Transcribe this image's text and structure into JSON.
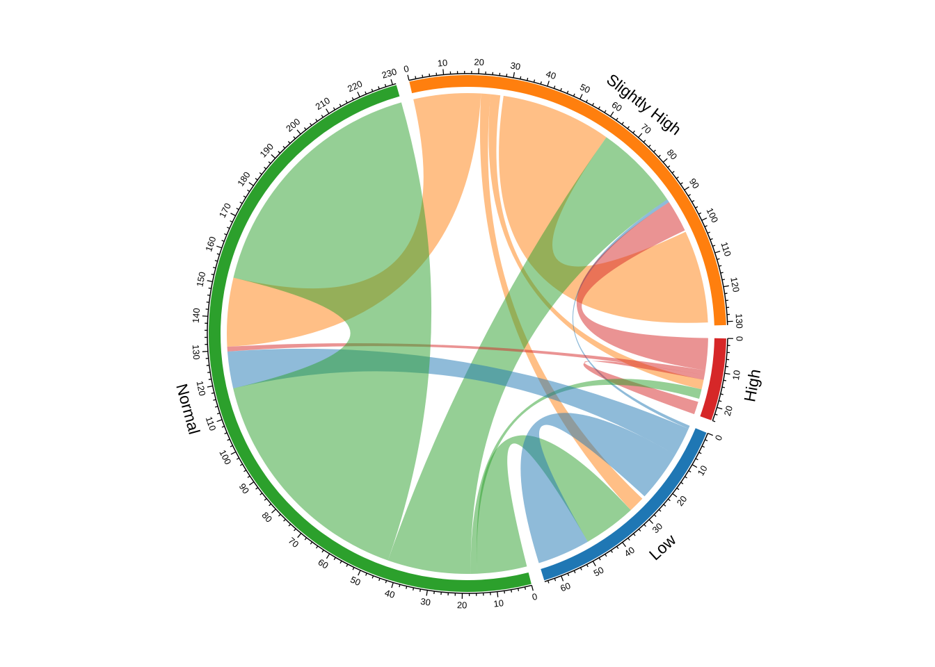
{
  "chart_data": {
    "type": "chord",
    "title": "",
    "sectors": [
      {
        "name": "Slightly High",
        "max": 131,
        "color": "#FF7F0E"
      },
      {
        "name": "High",
        "max": 24,
        "color": "#D62728"
      },
      {
        "name": "Low",
        "max": 65,
        "color": "#1F77B4"
      },
      {
        "name": "Normal",
        "max": 231,
        "color": "#2CA02C"
      }
    ],
    "tick_minor_step": 2,
    "tick_major_step": 10,
    "link_alpha": 0.5,
    "links": [
      {
        "from": "Slightly High",
        "from_range": [
          0,
          21
        ],
        "to": "Normal",
        "to_range": [
          131,
          152.5
        ]
      },
      {
        "from": "Slightly High",
        "from_range": [
          21,
          24
        ],
        "to": "Low",
        "to_range": [
          27,
          32
        ]
      },
      {
        "from": "Slightly High",
        "from_range": [
          24,
          27
        ],
        "to": "High",
        "to_range": [
          13,
          16
        ]
      },
      {
        "from": "Slightly High",
        "from_range": [
          28,
          62.5
        ],
        "to": "Slightly High",
        "to_range": [
          101,
          130
        ]
      },
      {
        "from": "Normal",
        "from_range": [
          17.5,
          43.5
        ],
        "to": "Slightly High",
        "to_range": [
          62.5,
          89.5
        ]
      },
      {
        "from": "Low",
        "from_range": [
          0,
          1
        ],
        "to": "Slightly High",
        "to_range": [
          89.5,
          90.5
        ]
      },
      {
        "from": "High",
        "from_range": [
          0,
          10
        ],
        "to": "Slightly High",
        "to_range": [
          90.5,
          100.5
        ]
      },
      {
        "from": "High",
        "from_range": [
          10,
          11.5
        ],
        "to": "Normal",
        "to_range": [
          129.5,
          131
        ]
      },
      {
        "from": "High",
        "from_range": [
          11.5,
          13
        ],
        "to": "High",
        "to_range": [
          20,
          24
        ]
      },
      {
        "from": "Normal",
        "from_range": [
          15.5,
          17.5
        ],
        "to": "High",
        "to_range": [
          16,
          19
        ]
      },
      {
        "from": "Normal",
        "from_range": [
          0,
          15.5
        ],
        "to": "Low",
        "to_range": [
          32,
          48.5
        ]
      },
      {
        "from": "Low",
        "from_range": [
          1,
          10
        ],
        "to": "Normal",
        "to_range": [
          118,
          129.5
        ]
      },
      {
        "from": "Low",
        "from_range": [
          10,
          26
        ],
        "to": "Low",
        "to_range": [
          48.5,
          65
        ]
      },
      {
        "from": "Normal",
        "from_range": [
          43.5,
          118
        ],
        "to": "Normal",
        "to_range": [
          152.5,
          231
        ]
      }
    ]
  }
}
